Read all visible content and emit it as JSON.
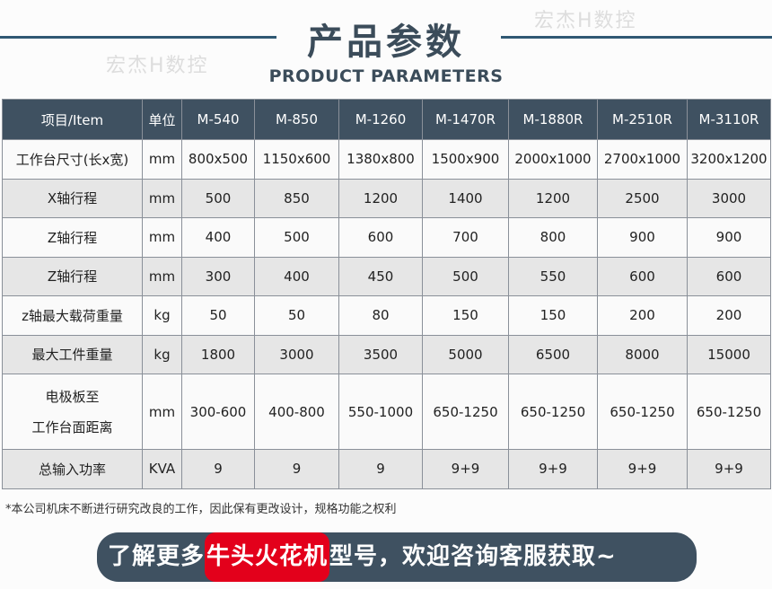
{
  "header": {
    "title": "产品参数",
    "subtitle": "PRODUCT PARAMETERS",
    "watermark": "宏杰H数控"
  },
  "table": {
    "columns": [
      "项目/Item",
      "单位",
      "M-540",
      "M-850",
      "M-1260",
      "M-1470R",
      "M-1880R",
      "M-2510R",
      "M-3110R"
    ],
    "rows": [
      [
        "工作台尺寸(长x宽)",
        "mm",
        "800x500",
        "1150x600",
        "1380x800",
        "1500x900",
        "2000x1000",
        "2700x1000",
        "3200x1200"
      ],
      [
        "X轴行程",
        "mm",
        "500",
        "850",
        "1200",
        "1400",
        "1200",
        "2500",
        "3000"
      ],
      [
        "Z轴行程",
        "mm",
        "400",
        "500",
        "600",
        "700",
        "800",
        "900",
        "900"
      ],
      [
        "Z轴行程",
        "mm",
        "300",
        "400",
        "450",
        "500",
        "550",
        "600",
        "600"
      ],
      [
        "z轴最大载荷重量",
        "kg",
        "50",
        "50",
        "80",
        "150",
        "150",
        "200",
        "200"
      ],
      [
        "最大工件重量",
        "kg",
        "1800",
        "3000",
        "3500",
        "5000",
        "6500",
        "8000",
        "15000"
      ],
      [
        "电极板至\n工作台面距离",
        "mm",
        "300-600",
        "400-800",
        "550-1000",
        "650-1250",
        "650-1250",
        "650-1250",
        "650-1250"
      ],
      [
        "总输入功率",
        "KVA",
        "9",
        "9",
        "9",
        "9+9",
        "9+9",
        "9+9",
        "9+9"
      ]
    ]
  },
  "note": "*本公司机床不断进行研究改良的工作，因此保有更改设计，规格功能之权利",
  "banner": {
    "before": "了解更多",
    "highlight": "牛头火花机",
    "after": "型号，欢迎咨询客服获取~"
  },
  "colors": {
    "header": "#3f5161",
    "highlight": "#e3001b",
    "title": "#3b4c5a"
  }
}
